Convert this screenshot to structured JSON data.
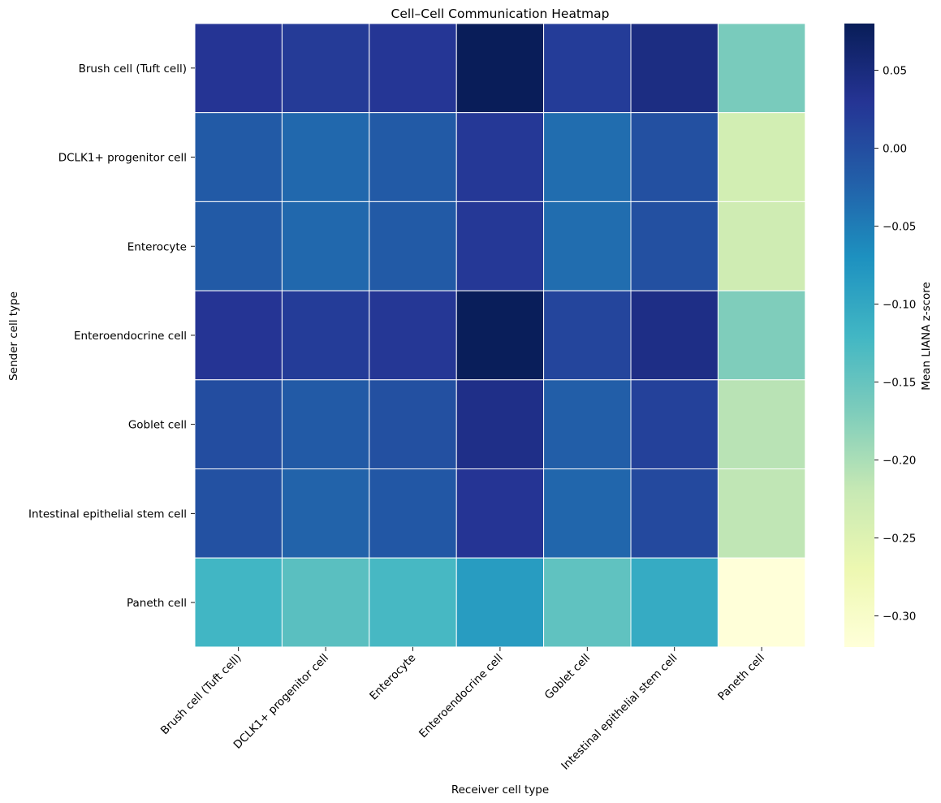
{
  "chart_data": {
    "type": "heatmap",
    "title": "Cell–Cell Communication Heatmap",
    "xlabel": "Receiver cell type",
    "ylabel": "Sender cell type",
    "colorbar_label": "Mean LIANA z-score",
    "colormap": "YlGnBu",
    "vmin": -0.32,
    "vmax": 0.08,
    "colorbar_ticks": [
      0.05,
      0.0,
      -0.05,
      -0.1,
      -0.15,
      -0.2,
      -0.25,
      -0.3
    ],
    "colorbar_tick_labels": [
      "0.05",
      "0.00",
      "−0.05",
      "−0.10",
      "−0.15",
      "−0.20",
      "−0.25",
      "−0.30"
    ],
    "x_categories": [
      "Brush cell (Tuft cell)",
      "DCLK1+ progenitor cell",
      "Enterocyte",
      "Enteroendocrine cell",
      "Goblet cell",
      "Intestinal epithelial stem cell",
      "Paneth cell"
    ],
    "y_categories": [
      "Brush cell (Tuft cell)",
      "DCLK1+ progenitor cell",
      "Enterocyte",
      "Enteroendocrine cell",
      "Goblet cell",
      "Intestinal epithelial stem cell",
      "Paneth cell"
    ],
    "values": [
      [
        0.03,
        0.022,
        0.028,
        0.079,
        0.02,
        0.045,
        -0.165
      ],
      [
        -0.015,
        -0.03,
        -0.015,
        0.025,
        -0.035,
        -0.003,
        -0.235
      ],
      [
        -0.015,
        -0.03,
        -0.015,
        0.025,
        -0.035,
        -0.003,
        -0.23
      ],
      [
        0.03,
        0.02,
        0.027,
        0.078,
        0.01,
        0.042,
        -0.17
      ],
      [
        0.0,
        -0.015,
        -0.003,
        0.04,
        -0.02,
        0.015,
        -0.21
      ],
      [
        -0.005,
        -0.025,
        -0.012,
        0.03,
        -0.028,
        0.005,
        -0.215
      ],
      [
        -0.12,
        -0.14,
        -0.125,
        -0.085,
        -0.145,
        -0.105,
        -0.32
      ]
    ]
  }
}
